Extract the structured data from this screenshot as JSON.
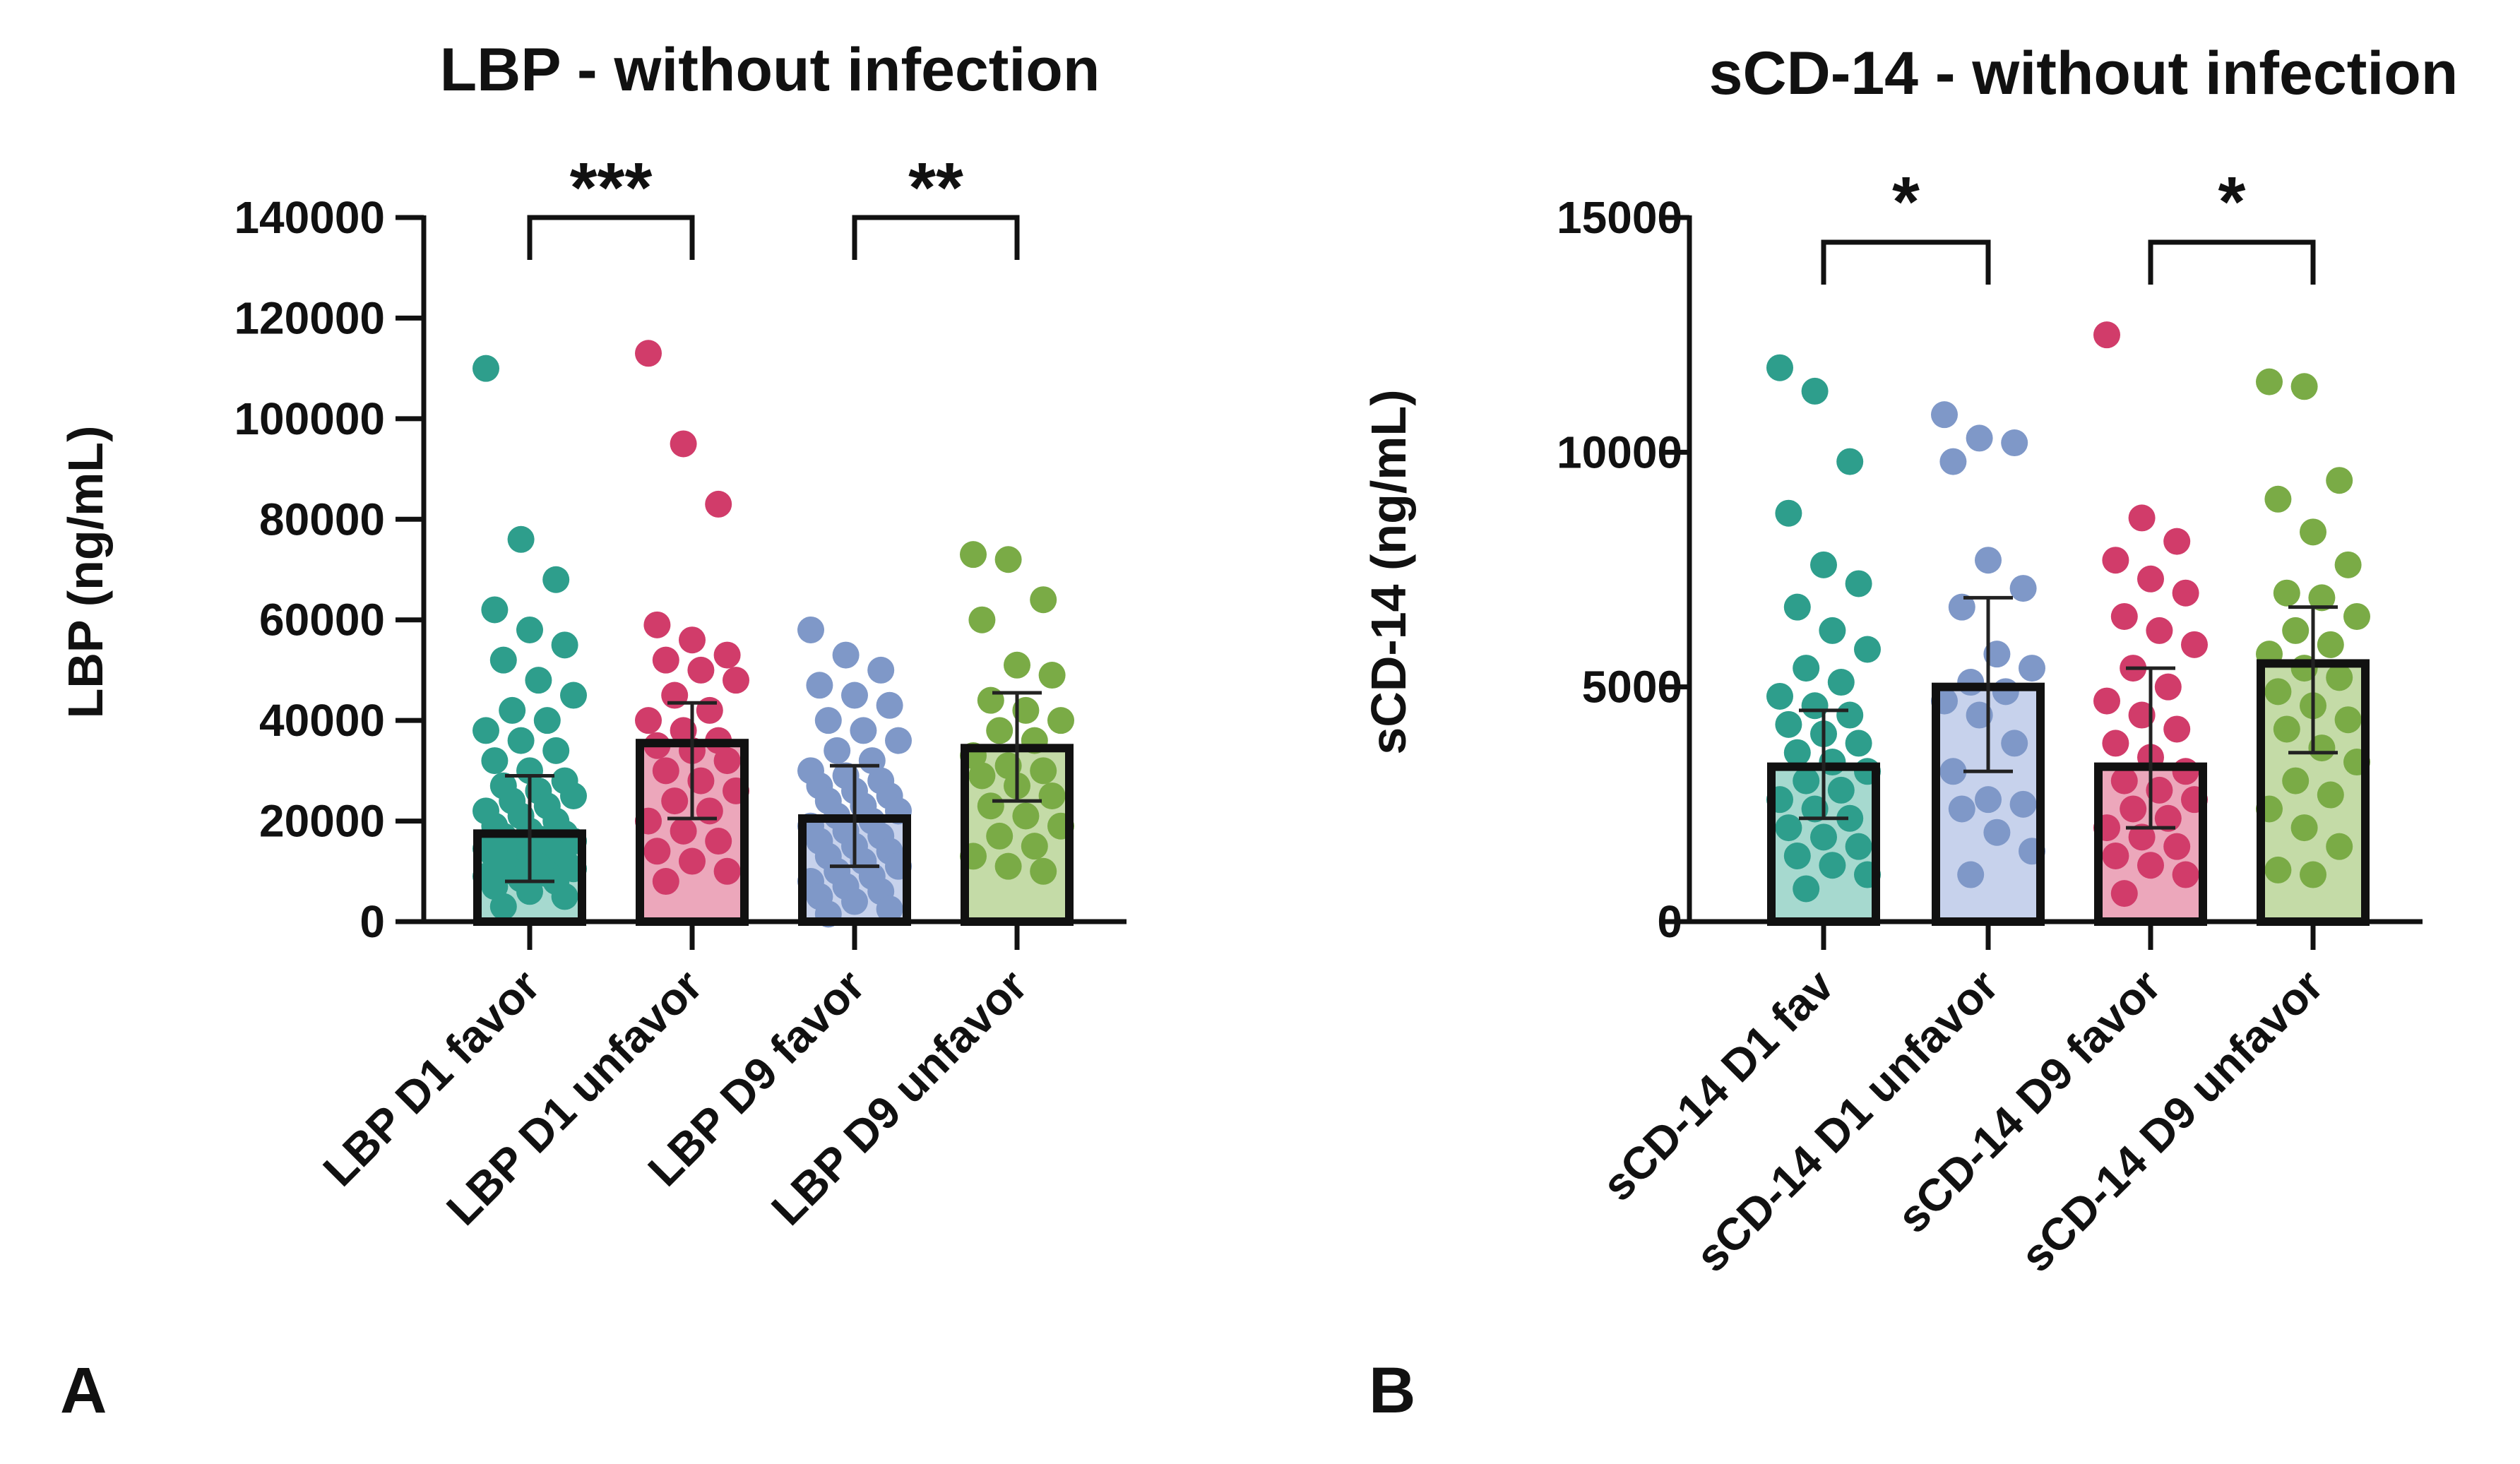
{
  "figure": {
    "panels": [
      {
        "label": "A"
      },
      {
        "label": "B"
      }
    ]
  },
  "chart_data": [
    {
      "type": "bar",
      "panel_label": "A",
      "title": "LBP - without infection",
      "xlabel": "",
      "ylabel": "LBP (ng/mL)",
      "ylim": [
        0,
        140000
      ],
      "yticks": [
        0,
        20000,
        40000,
        60000,
        80000,
        100000,
        120000,
        140000
      ],
      "categories": [
        "LBP D1 favor",
        "LBP D1 unfavor",
        "LBP D9 favor",
        "LBP D9 unfavor"
      ],
      "values": [
        17500,
        35500,
        20500,
        34500
      ],
      "error_upper": [
        29000,
        43500,
        31000,
        45500
      ],
      "error_lower": [
        8000,
        20500,
        11000,
        24000
      ],
      "colors": [
        "#2e9e8c",
        "#d13c6a",
        "#7f98c8",
        "#7aab46"
      ],
      "fill_colors": [
        "#a6d9cf",
        "#eca7bb",
        "#c7d2ec",
        "#c4dba7"
      ],
      "points": [
        [
          110000,
          76000,
          68000,
          62000,
          58000,
          55000,
          52000,
          48000,
          45000,
          42000,
          40000,
          38000,
          36000,
          34000,
          32000,
          30000,
          28000,
          27000,
          26000,
          25000,
          24000,
          23000,
          22000,
          21000,
          20000,
          19000,
          18000,
          17500,
          17000,
          16500,
          16000,
          15500,
          15000,
          14500,
          14000,
          13500,
          13000,
          12500,
          12000,
          11500,
          11000,
          10500,
          10000,
          9500,
          9000,
          8500,
          8000,
          7000,
          6000,
          5000,
          3000
        ],
        [
          113000,
          95000,
          83000,
          59000,
          56000,
          53000,
          52000,
          50000,
          48000,
          45000,
          42000,
          40000,
          38000,
          36000,
          35000,
          34000,
          32000,
          30000,
          28000,
          26000,
          24000,
          22000,
          20000,
          18000,
          16000,
          14000,
          12000,
          10000,
          8000
        ],
        [
          58000,
          53000,
          50000,
          47000,
          45000,
          43000,
          40000,
          38000,
          36000,
          34000,
          32000,
          30000,
          29000,
          28000,
          27000,
          26000,
          25000,
          24000,
          23000,
          22000,
          21000,
          20000,
          19000,
          18000,
          17000,
          16000,
          15000,
          14000,
          13000,
          12000,
          11000,
          10000,
          9000,
          8000,
          7000,
          6000,
          5000,
          4000,
          2500,
          1500
        ],
        [
          73000,
          72000,
          64000,
          60000,
          51000,
          49000,
          44000,
          42000,
          40000,
          38000,
          36000,
          33000,
          31000,
          30000,
          29000,
          27000,
          25000,
          23000,
          21000,
          19000,
          17000,
          15000,
          13000,
          11000,
          10000
        ]
      ],
      "significance": [
        {
          "groups": [
            0,
            1
          ],
          "label": "***",
          "level": 140000
        },
        {
          "groups": [
            2,
            3
          ],
          "label": "**",
          "level": 140000
        }
      ]
    },
    {
      "type": "bar",
      "panel_label": "B",
      "title": "sCD-14 - without infection",
      "xlabel": "",
      "ylabel": "sCD-14 (ng/mL)",
      "ylim": [
        0,
        15000
      ],
      "yticks": [
        0,
        5000,
        10000,
        15000
      ],
      "categories": [
        "sCD-14 D1 fav",
        "sCD-14 D1 unfavor",
        "sCD-14 D9 favor",
        "sCD-14 D9 unfavor"
      ],
      "values": [
        3300,
        5000,
        3300,
        5500
      ],
      "error_upper": [
        4500,
        6900,
        5400,
        6700
      ],
      "error_lower": [
        2200,
        3200,
        2000,
        3600
      ],
      "colors": [
        "#2e9e8c",
        "#7f98c8",
        "#d13c6a",
        "#7aab46"
      ],
      "fill_colors": [
        "#a6d9cf",
        "#c7d2ec",
        "#eca7bb",
        "#c4dba7"
      ],
      "points": [
        [
          11800,
          11300,
          9800,
          8700,
          7600,
          7200,
          6700,
          6200,
          5800,
          5400,
          5100,
          4800,
          4600,
          4400,
          4200,
          4000,
          3800,
          3600,
          3400,
          3200,
          3000,
          2800,
          2600,
          2400,
          2200,
          2000,
          1800,
          1600,
          1400,
          1200,
          1000,
          700
        ],
        [
          10800,
          10300,
          10200,
          9800,
          7700,
          7100,
          6700,
          5700,
          5400,
          5100,
          4900,
          4700,
          4400,
          3800,
          3200,
          2600,
          2500,
          2400,
          1900,
          1500,
          1000
        ],
        [
          12500,
          8600,
          8100,
          7700,
          7300,
          7000,
          6500,
          6200,
          5900,
          5400,
          5000,
          4700,
          4400,
          4100,
          3800,
          3500,
          3200,
          3000,
          2800,
          2600,
          2400,
          2200,
          2000,
          1800,
          1600,
          1400,
          1200,
          1000,
          600
        ],
        [
          11500,
          11400,
          9400,
          9000,
          8300,
          7600,
          7000,
          6900,
          6500,
          6200,
          5900,
          5700,
          5400,
          5200,
          4900,
          4600,
          4300,
          4100,
          3700,
          3400,
          3000,
          2700,
          2400,
          2000,
          1600,
          1100,
          1000
        ]
      ],
      "significance": [
        {
          "groups": [
            0,
            1
          ],
          "label": "*",
          "level": 14500
        },
        {
          "groups": [
            2,
            3
          ],
          "label": "*",
          "level": 14500
        }
      ]
    }
  ]
}
